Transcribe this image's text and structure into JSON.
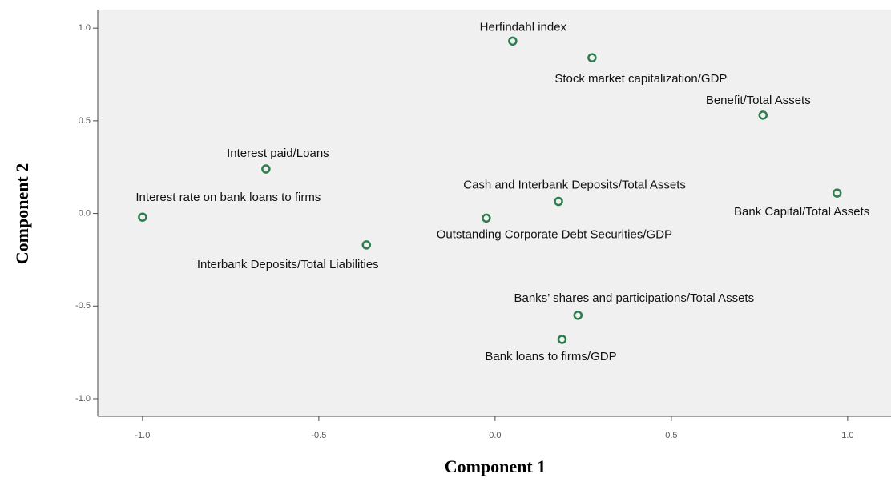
{
  "chart_data": {
    "type": "scatter",
    "x_label": "Component 1",
    "y_label": "Component 2",
    "labels": [
      "Herfindahl index",
      "Stock market capitalization/GDP",
      "Benefit/Total Assets",
      "Interest paid/Loans",
      "Interest rate on bank loans to firms",
      "Cash and Interbank Deposits/Total Assets",
      "Bank Capital/Total Assets",
      "Outstanding Corporate Debt Securities/GDP",
      "Interbank Deposits/Total Liabilities",
      "Banks’ shares and participations/Total Assets",
      "Bank loans to firms/GDP"
    ],
    "x": [
      0.05,
      0.275,
      0.76,
      -0.65,
      -1.0,
      0.18,
      0.97,
      -0.025,
      -0.365,
      0.235,
      0.19
    ],
    "values": [
      0.93,
      0.84,
      0.53,
      0.24,
      -0.02,
      0.065,
      0.11,
      -0.025,
      -0.17,
      -0.55,
      -0.68
    ],
    "color": "#2e7d4f",
    "xlim": [
      -1.127,
      1.123
    ],
    "ylim": [
      -1.095,
      1.1
    ],
    "xticks": [
      {
        "value": -1,
        "label": "-1.0"
      },
      -0.5,
      {
        "value": 0,
        "label": "0.0"
      },
      0.5,
      {
        "value": 1,
        "label": "1.0"
      }
    ],
    "yticks": [
      {
        "value": -1,
        "label": "-1.0"
      },
      -0.5,
      {
        "value": 0,
        "label": "0.0"
      },
      0.5,
      {
        "value": 1,
        "label": "1.0"
      }
    ]
  }
}
